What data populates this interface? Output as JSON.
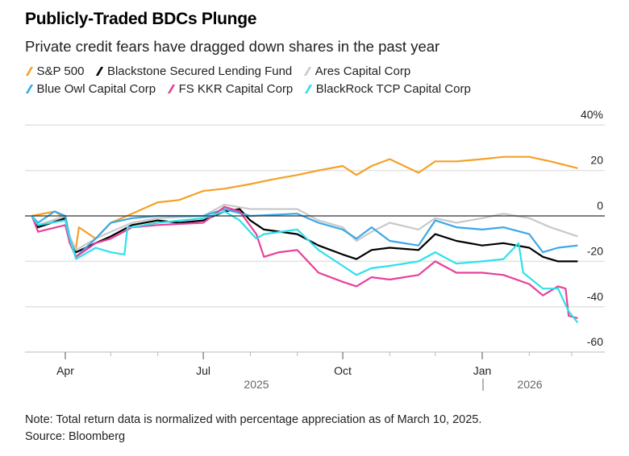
{
  "chart_data": {
    "type": "line",
    "title": "Publicly-Traded BDCs Plunge",
    "subtitle": "Private credit fears have dragged down shares in the past year",
    "ylabel": "",
    "xlabel": "",
    "ylim": [
      -60,
      40
    ],
    "y_ticks": [
      "40%",
      "20",
      "0",
      "-20",
      "-40",
      "-60"
    ],
    "x_ticks": [
      "Apr",
      "Jul",
      "Oct",
      "Jan"
    ],
    "x_year_labels": [
      "2025",
      "2026"
    ],
    "grid": true,
    "legend_placement": "top",
    "series": [
      {
        "name": "S&P 500",
        "color": "#f5a027",
        "points": [
          [
            "2025-03-10",
            0
          ],
          [
            "2025-03-25",
            2
          ],
          [
            "2025-04-01",
            -1
          ],
          [
            "2025-04-04",
            -12
          ],
          [
            "2025-04-08",
            -14
          ],
          [
            "2025-04-10",
            -5
          ],
          [
            "2025-04-21",
            -10
          ],
          [
            "2025-05-01",
            -3
          ],
          [
            "2025-05-15",
            1
          ],
          [
            "2025-06-01",
            6
          ],
          [
            "2025-06-15",
            7
          ],
          [
            "2025-07-01",
            11
          ],
          [
            "2025-07-15",
            12
          ],
          [
            "2025-08-01",
            14
          ],
          [
            "2025-08-15",
            16
          ],
          [
            "2025-09-01",
            18
          ],
          [
            "2025-09-15",
            20
          ],
          [
            "2025-10-01",
            22
          ],
          [
            "2025-10-10",
            18
          ],
          [
            "2025-10-20",
            22
          ],
          [
            "2025-11-01",
            25
          ],
          [
            "2025-11-20",
            19
          ],
          [
            "2025-12-01",
            24
          ],
          [
            "2025-12-15",
            24
          ],
          [
            "2026-01-01",
            25
          ],
          [
            "2026-01-15",
            26
          ],
          [
            "2026-02-01",
            26
          ],
          [
            "2026-02-15",
            24
          ],
          [
            "2026-03-05",
            21
          ]
        ]
      },
      {
        "name": "Blackstone Secured Lending Fund",
        "color": "#000000",
        "points": [
          [
            "2025-03-10",
            0
          ],
          [
            "2025-03-14",
            -5
          ],
          [
            "2025-04-01",
            -1
          ],
          [
            "2025-04-04",
            -10
          ],
          [
            "2025-04-08",
            -16
          ],
          [
            "2025-04-21",
            -12
          ],
          [
            "2025-05-01",
            -9
          ],
          [
            "2025-05-15",
            -4
          ],
          [
            "2025-06-01",
            -2
          ],
          [
            "2025-06-15",
            -3
          ],
          [
            "2025-07-01",
            -2
          ],
          [
            "2025-07-15",
            2
          ],
          [
            "2025-07-25",
            3
          ],
          [
            "2025-08-01",
            -2
          ],
          [
            "2025-08-10",
            -6
          ],
          [
            "2025-09-01",
            -8
          ],
          [
            "2025-09-15",
            -13
          ],
          [
            "2025-10-01",
            -17
          ],
          [
            "2025-10-10",
            -19
          ],
          [
            "2025-10-20",
            -15
          ],
          [
            "2025-11-01",
            -14
          ],
          [
            "2025-11-20",
            -15
          ],
          [
            "2025-12-01",
            -8
          ],
          [
            "2025-12-15",
            -11
          ],
          [
            "2026-01-01",
            -13
          ],
          [
            "2026-01-15",
            -12
          ],
          [
            "2026-02-01",
            -14
          ],
          [
            "2026-02-10",
            -18
          ],
          [
            "2026-02-20",
            -20
          ],
          [
            "2026-03-05",
            -20
          ]
        ]
      },
      {
        "name": "Ares Capital Corp",
        "color": "#c9c9c9",
        "points": [
          [
            "2025-03-10",
            0
          ],
          [
            "2025-03-14",
            -4
          ],
          [
            "2025-04-01",
            0
          ],
          [
            "2025-04-04",
            -9
          ],
          [
            "2025-04-08",
            -15
          ],
          [
            "2025-04-21",
            -10
          ],
          [
            "2025-05-01",
            -7
          ],
          [
            "2025-05-15",
            -3
          ],
          [
            "2025-06-01",
            -1
          ],
          [
            "2025-07-01",
            0
          ],
          [
            "2025-07-15",
            5
          ],
          [
            "2025-08-01",
            3
          ],
          [
            "2025-09-01",
            3
          ],
          [
            "2025-09-15",
            -2
          ],
          [
            "2025-10-01",
            -5
          ],
          [
            "2025-10-10",
            -11
          ],
          [
            "2025-10-20",
            -7
          ],
          [
            "2025-11-01",
            -3
          ],
          [
            "2025-11-20",
            -6
          ],
          [
            "2025-12-01",
            -1
          ],
          [
            "2025-12-15",
            -3
          ],
          [
            "2026-01-01",
            -1
          ],
          [
            "2026-01-15",
            1
          ],
          [
            "2026-02-01",
            -1
          ],
          [
            "2026-02-15",
            -5
          ],
          [
            "2026-03-05",
            -9
          ]
        ]
      },
      {
        "name": "Blue Owl Capital Corp",
        "color": "#3aa8e6",
        "points": [
          [
            "2025-03-10",
            0
          ],
          [
            "2025-03-14",
            -3
          ],
          [
            "2025-03-25",
            2
          ],
          [
            "2025-04-01",
            0
          ],
          [
            "2025-04-04",
            -10
          ],
          [
            "2025-04-08",
            -18
          ],
          [
            "2025-04-21",
            -10
          ],
          [
            "2025-05-01",
            -3
          ],
          [
            "2025-05-15",
            -1
          ],
          [
            "2025-06-01",
            0
          ],
          [
            "2025-07-01",
            0
          ],
          [
            "2025-07-15",
            3
          ],
          [
            "2025-08-01",
            0
          ],
          [
            "2025-09-01",
            1
          ],
          [
            "2025-09-15",
            -3
          ],
          [
            "2025-10-01",
            -6
          ],
          [
            "2025-10-10",
            -10
          ],
          [
            "2025-10-20",
            -5
          ],
          [
            "2025-11-01",
            -11
          ],
          [
            "2025-11-20",
            -13
          ],
          [
            "2025-12-01",
            -2
          ],
          [
            "2025-12-15",
            -5
          ],
          [
            "2026-01-01",
            -6
          ],
          [
            "2026-01-15",
            -5
          ],
          [
            "2026-02-01",
            -8
          ],
          [
            "2026-02-10",
            -16
          ],
          [
            "2026-02-20",
            -14
          ],
          [
            "2026-03-05",
            -13
          ]
        ]
      },
      {
        "name": "FS KKR Capital Corp",
        "color": "#e8409a",
        "points": [
          [
            "2025-03-10",
            0
          ],
          [
            "2025-03-14",
            -7
          ],
          [
            "2025-04-01",
            -4
          ],
          [
            "2025-04-04",
            -12
          ],
          [
            "2025-04-08",
            -18
          ],
          [
            "2025-04-21",
            -12
          ],
          [
            "2025-05-01",
            -10
          ],
          [
            "2025-05-15",
            -5
          ],
          [
            "2025-06-01",
            -4
          ],
          [
            "2025-07-01",
            -3
          ],
          [
            "2025-07-15",
            4
          ],
          [
            "2025-07-25",
            2
          ],
          [
            "2025-08-05",
            -8
          ],
          [
            "2025-08-10",
            -18
          ],
          [
            "2025-08-20",
            -16
          ],
          [
            "2025-09-01",
            -15
          ],
          [
            "2025-09-15",
            -25
          ],
          [
            "2025-10-01",
            -29
          ],
          [
            "2025-10-10",
            -31
          ],
          [
            "2025-10-20",
            -27
          ],
          [
            "2025-11-01",
            -28
          ],
          [
            "2025-11-20",
            -26
          ],
          [
            "2025-12-01",
            -20
          ],
          [
            "2025-12-15",
            -25
          ],
          [
            "2026-01-01",
            -25
          ],
          [
            "2026-01-15",
            -26
          ],
          [
            "2026-02-01",
            -30
          ],
          [
            "2026-02-10",
            -35
          ],
          [
            "2026-02-20",
            -31
          ],
          [
            "2026-02-25",
            -32
          ],
          [
            "2026-02-27",
            -44
          ],
          [
            "2026-03-05",
            -45
          ]
        ]
      },
      {
        "name": "BlackRock TCP Capital Corp",
        "color": "#2ee0ec",
        "points": [
          [
            "2025-03-10",
            0
          ],
          [
            "2025-03-14",
            -4
          ],
          [
            "2025-04-01",
            -2
          ],
          [
            "2025-04-04",
            -10
          ],
          [
            "2025-04-08",
            -19
          ],
          [
            "2025-04-21",
            -14
          ],
          [
            "2025-05-01",
            -16
          ],
          [
            "2025-05-10",
            -17
          ],
          [
            "2025-05-12",
            -5
          ],
          [
            "2025-05-15",
            -5
          ],
          [
            "2025-06-01",
            -3
          ],
          [
            "2025-07-01",
            -1
          ],
          [
            "2025-07-15",
            2
          ],
          [
            "2025-07-25",
            -2
          ],
          [
            "2025-08-05",
            -10
          ],
          [
            "2025-08-10",
            -8
          ],
          [
            "2025-09-01",
            -6
          ],
          [
            "2025-09-15",
            -15
          ],
          [
            "2025-10-01",
            -22
          ],
          [
            "2025-10-10",
            -26
          ],
          [
            "2025-10-20",
            -23
          ],
          [
            "2025-11-01",
            -22
          ],
          [
            "2025-11-20",
            -20
          ],
          [
            "2025-12-01",
            -16
          ],
          [
            "2025-12-15",
            -21
          ],
          [
            "2026-01-01",
            -20
          ],
          [
            "2026-01-15",
            -19
          ],
          [
            "2026-01-25",
            -12
          ],
          [
            "2026-01-28",
            -25
          ],
          [
            "2026-02-10",
            -32
          ],
          [
            "2026-02-20",
            -32
          ],
          [
            "2026-02-27",
            -42
          ],
          [
            "2026-03-05",
            -47
          ]
        ]
      }
    ]
  },
  "notes": {
    "note": "Note: Total return data is normalized with percentage appreciation as of March 10, 2025.",
    "source": "Source: Bloomberg"
  }
}
